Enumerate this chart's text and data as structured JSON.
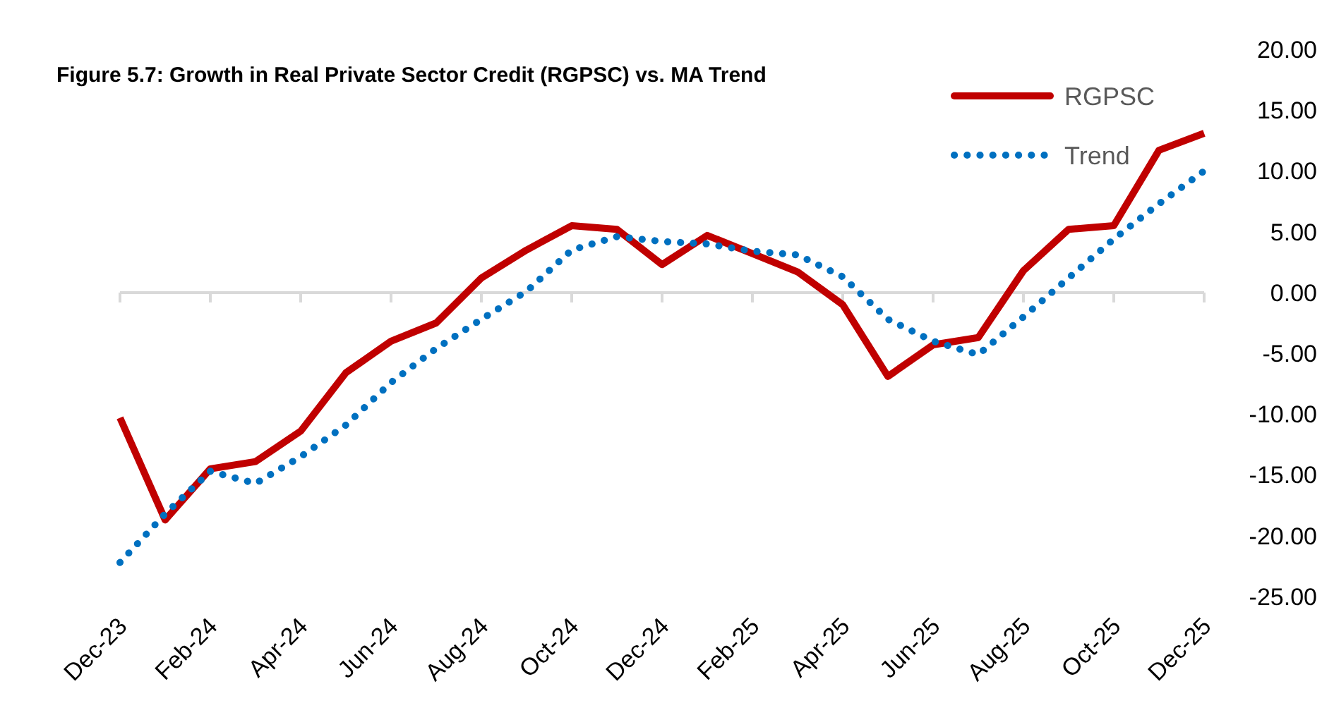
{
  "chart_data": {
    "type": "line",
    "title": "Figure 5.7: Growth in Real Private Sector Credit (RGPSC) vs. MA Trend",
    "categories": [
      "Dec-23",
      null,
      "Feb-24",
      null,
      "Apr-24",
      null,
      "Jun-24",
      null,
      "Aug-24",
      null,
      "Oct-24",
      null,
      "Dec-24",
      null,
      "Feb-25",
      null,
      "Apr-25",
      null,
      "Jun-25",
      null,
      "Aug-25",
      null,
      "Oct-25",
      null,
      "Dec-25"
    ],
    "series": [
      {
        "name": "RGPSC",
        "color": "#c00000",
        "line_style": "solid",
        "values": [
          -10.3,
          -18.7,
          -14.5,
          -13.9,
          -11.4,
          -6.6,
          -4.0,
          -2.5,
          1.2,
          3.5,
          5.5,
          5.2,
          2.3,
          4.7,
          3.2,
          1.7,
          -1.0,
          -6.9,
          -4.3,
          -3.7,
          1.8,
          5.2,
          5.5,
          11.7,
          13.1
        ]
      },
      {
        "name": "Trend",
        "color": "#0070c0",
        "line_style": "dotted",
        "values": [
          -22.2,
          -18.2,
          -14.7,
          -15.7,
          -13.5,
          -10.9,
          -7.4,
          -4.6,
          -2.2,
          0.1,
          3.5,
          4.6,
          4.2,
          4.0,
          3.4,
          3.1,
          1.3,
          -2.2,
          -4.0,
          -5.1,
          -2.0,
          1.2,
          4.4,
          7.3,
          10.0
        ]
      }
    ],
    "ylim": [
      -25,
      20
    ],
    "yticks": [
      {
        "value": 20,
        "label": "20.00"
      },
      {
        "value": 15,
        "label": "15.00"
      },
      {
        "value": 10,
        "label": "10.00"
      },
      {
        "value": 5,
        "label": "5.00"
      },
      {
        "value": 0,
        "label": "0.00"
      },
      {
        "value": -5,
        "label": "-5.00"
      },
      {
        "value": -10,
        "label": "-10.00"
      },
      {
        "value": -15,
        "label": "-15.00"
      },
      {
        "value": -20,
        "label": "-20.00"
      },
      {
        "value": -25,
        "label": "-25.00"
      }
    ],
    "ref_lines": [
      {
        "axis": "y",
        "value": 0,
        "color": "#d9d9d9"
      }
    ],
    "grid": false,
    "legend": "top right",
    "marker": "none"
  }
}
